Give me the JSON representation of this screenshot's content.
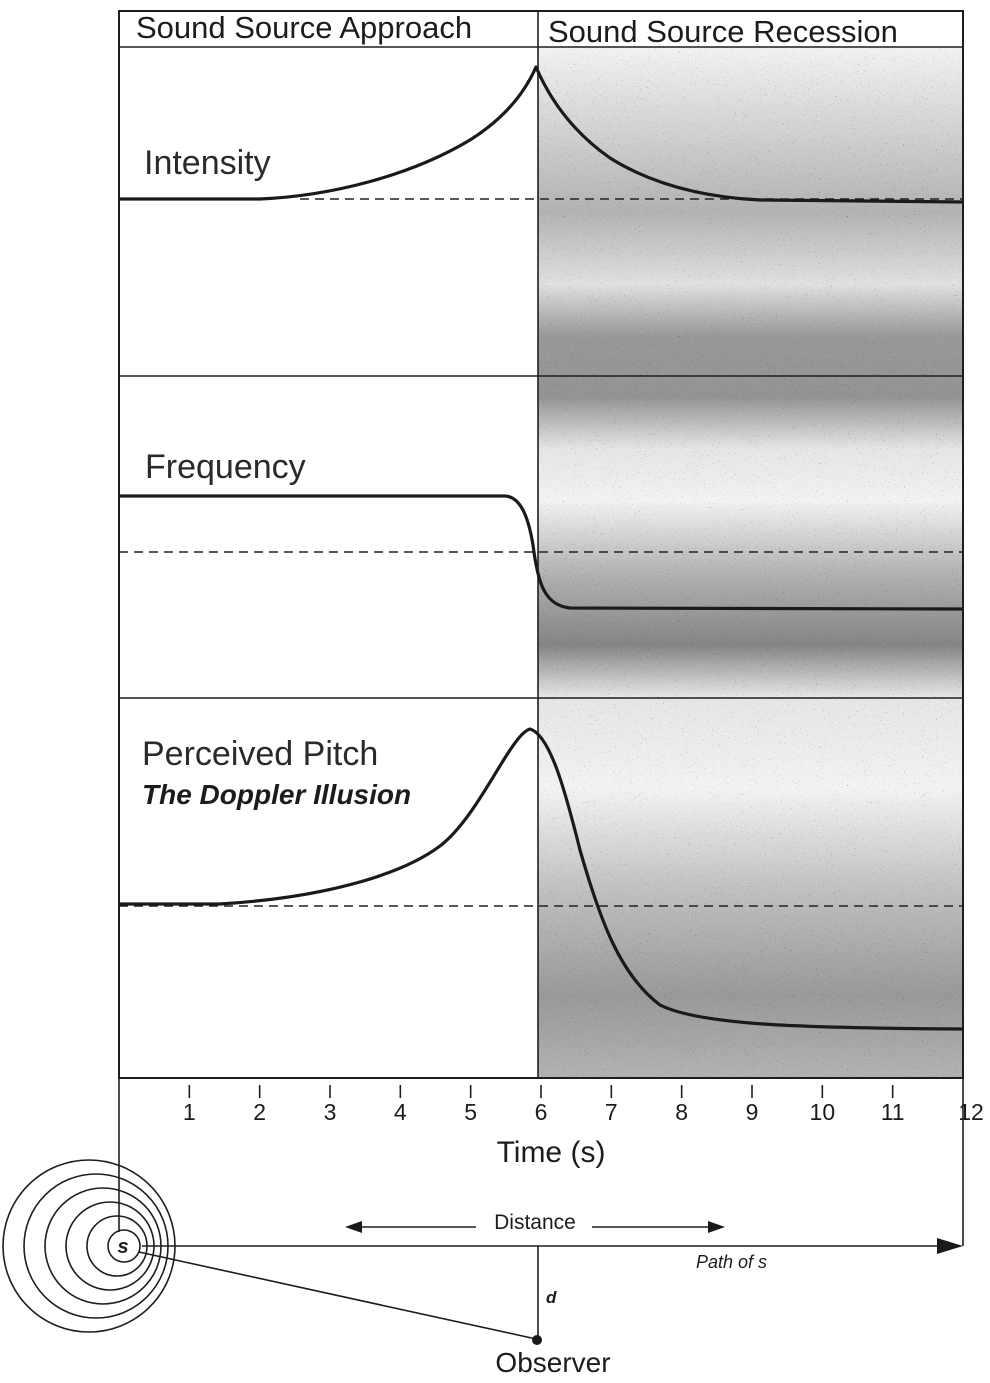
{
  "header": {
    "approach_label": "Sound Source Approach",
    "recession_label": "Sound Source Recession"
  },
  "panels": {
    "intensity_label": "Intensity",
    "frequency_label": "Frequency",
    "pitch_label": "Perceived Pitch",
    "pitch_subtitle": "The Doppler Illusion"
  },
  "axis": {
    "title": "Time (s)",
    "ticks": [
      "1",
      "2",
      "3",
      "4",
      "5",
      "6",
      "7",
      "8",
      "9",
      "10",
      "11",
      "12"
    ]
  },
  "geometry_labels": {
    "distance": "Distance",
    "path": "Path of s",
    "source": "s",
    "d": "d",
    "observer": "Observer"
  },
  "chart_data": {
    "type": "line",
    "x_range": [
      0,
      12
    ],
    "x_ticks": [
      1,
      2,
      3,
      4,
      5,
      6,
      7,
      8,
      9,
      10,
      11,
      12
    ],
    "series": [
      {
        "name": "Intensity",
        "shape": "rises to a peak at 6 s, then decays back to baseline"
      },
      {
        "name": "Frequency",
        "shape": "constant high before 6 s, drops sharply at 6 s, constant low after"
      },
      {
        "name": "Perceived Pitch",
        "shape": "rises to a peak near 6 s, then falls below baseline"
      }
    ]
  }
}
